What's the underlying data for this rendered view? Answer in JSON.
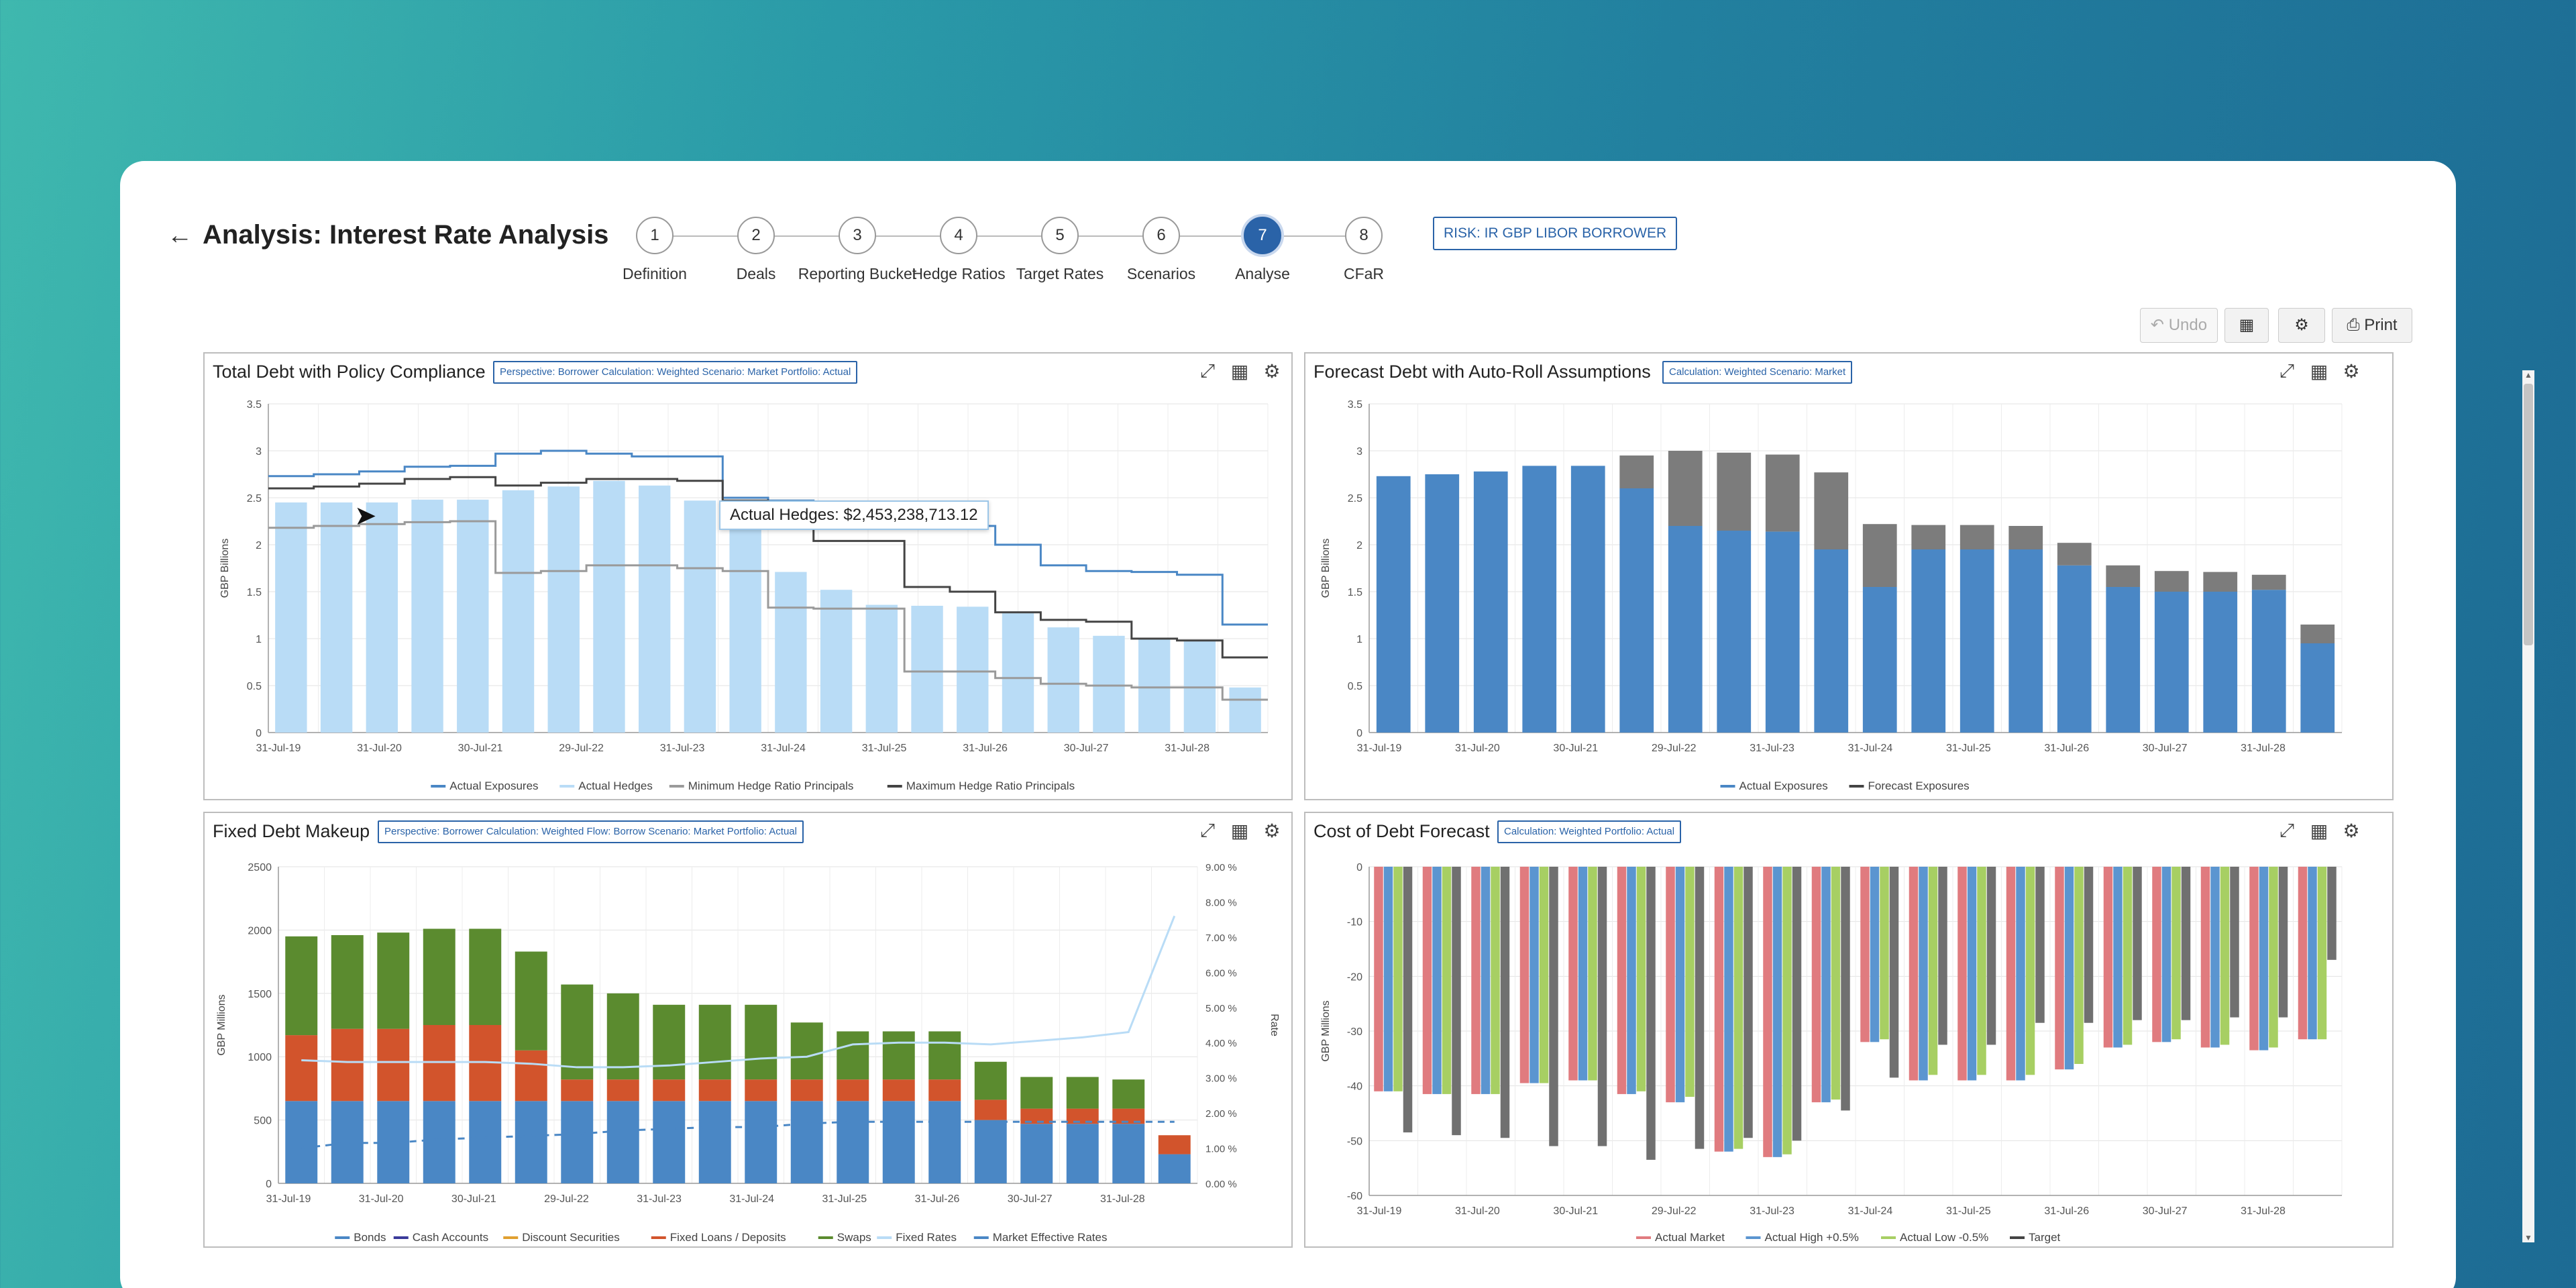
{
  "header": {
    "title": "Analysis: Interest Rate Analysis",
    "risk_label": "RISK: IR GBP LIBOR BORROWER",
    "steps": [
      {
        "num": "1",
        "label": "Definition"
      },
      {
        "num": "2",
        "label": "Deals"
      },
      {
        "num": "3",
        "label": "Reporting Bucket"
      },
      {
        "num": "4",
        "label": "Hedge Ratios"
      },
      {
        "num": "5",
        "label": "Target Rates"
      },
      {
        "num": "6",
        "label": "Scenarios"
      },
      {
        "num": "7",
        "label": "Analyse"
      },
      {
        "num": "8",
        "label": "CFaR"
      }
    ],
    "active_step": 7
  },
  "toolbar": {
    "undo_label": "Undo",
    "print_label": "Print"
  },
  "colors": {
    "accent": "#2a63a8",
    "exposures": "#4a87c5",
    "hedges": "#b9dcf6",
    "forecast_gray": "#7c7c7c",
    "bonds": "#4a87c5",
    "fixed_loans": "#d2542c",
    "swaps": "#5b8b2f",
    "red": "#e07b7f",
    "blue": "#5b95d0",
    "green": "#a7cf63",
    "gray": "#707070"
  },
  "tooltip": "Actual Hedges: $2,453,238,713.12",
  "panels": {
    "p1": {
      "title": "Total Debt with Policy Compliance",
      "tag": "Perspective: Borrower Calculation: Weighted Scenario: Market Portfolio: Actual"
    },
    "p2": {
      "title": "Forecast Debt with Auto-Roll Assumptions",
      "tag": "Calculation: Weighted Scenario: Market"
    },
    "p3": {
      "title": "Fixed Debt Makeup",
      "tag": "Perspective: Borrower Calculation: Weighted Flow: Borrow Scenario: Market Portfolio: Actual"
    },
    "p4": {
      "title": "Cost of Debt Forecast",
      "tag": "Calculation: Weighted Portfolio: Actual"
    }
  },
  "chart_data": [
    {
      "type": "bar",
      "title": "Total Debt with Policy Compliance",
      "ylabel": "GBP Billions",
      "ylim": [
        0,
        3.5
      ],
      "yticks": [
        "0",
        "0.5",
        "1",
        "1.5",
        "2",
        "2.5",
        "3",
        "3.5"
      ],
      "xticks": [
        "31-Jul-19",
        "31-Jul-20",
        "30-Jul-21",
        "29-Jul-22",
        "31-Jul-23",
        "31-Jul-24",
        "31-Jul-25",
        "31-Jul-26",
        "30-Jul-27",
        "31-Jul-28"
      ],
      "bars": {
        "name": "Actual Hedges",
        "values": [
          2.45,
          2.45,
          2.45,
          2.48,
          2.48,
          2.58,
          2.62,
          2.68,
          2.63,
          2.47,
          2.45,
          1.71,
          1.52,
          1.36,
          1.35,
          1.34,
          1.27,
          1.12,
          1.03,
          1.0,
          0.98,
          0.48
        ]
      },
      "lines": [
        {
          "name": "Actual Exposures",
          "values": [
            2.73,
            2.75,
            2.78,
            2.83,
            2.84,
            2.97,
            3.0,
            2.97,
            2.94,
            2.94,
            2.5,
            2.47,
            2.22,
            2.22,
            2.22,
            2.2,
            2.0,
            1.78,
            1.72,
            1.71,
            1.68,
            1.15
          ]
        },
        {
          "name": "Minimum Hedge Ratio Principals",
          "values": [
            2.18,
            2.2,
            2.22,
            2.24,
            2.25,
            1.7,
            1.72,
            1.78,
            1.78,
            1.75,
            1.72,
            1.33,
            1.32,
            1.32,
            0.65,
            0.65,
            0.58,
            0.52,
            0.5,
            0.48,
            0.48,
            0.35
          ]
        },
        {
          "name": "Maximum Hedge Ratio Principals",
          "values": [
            2.6,
            2.62,
            2.65,
            2.7,
            2.72,
            2.63,
            2.66,
            2.7,
            2.7,
            2.68,
            2.47,
            2.45,
            2.04,
            2.04,
            1.55,
            1.5,
            1.28,
            1.2,
            1.18,
            1.0,
            0.98,
            0.8
          ]
        }
      ],
      "legend": [
        "Actual Exposures",
        "Actual Hedges",
        "Minimum Hedge Ratio Principals",
        "Maximum Hedge Ratio Principals"
      ]
    },
    {
      "type": "bar",
      "title": "Forecast Debt with Auto-Roll Assumptions",
      "ylabel": "GBP Billions",
      "ylim": [
        0,
        3.5
      ],
      "yticks": [
        "0",
        "0.5",
        "1",
        "1.5",
        "2",
        "2.5",
        "3",
        "3.5"
      ],
      "xticks": [
        "31-Jul-19",
        "31-Jul-20",
        "30-Jul-21",
        "29-Jul-22",
        "31-Jul-23",
        "31-Jul-24",
        "31-Jul-25",
        "31-Jul-26",
        "30-Jul-27",
        "31-Jul-28"
      ],
      "series": [
        {
          "name": "Actual Exposures",
          "values": [
            2.73,
            2.75,
            2.78,
            2.84,
            2.84,
            2.6,
            2.2,
            2.15,
            2.14,
            1.95,
            1.55,
            1.95,
            1.95,
            1.95,
            1.78,
            1.55,
            1.5,
            1.5,
            1.52,
            0.95
          ]
        },
        {
          "name": "Forecast Exposures",
          "values": [
            0,
            0,
            0,
            0,
            0,
            0.35,
            0.8,
            0.83,
            0.82,
            0.82,
            0.67,
            0.26,
            0.26,
            0.25,
            0.24,
            0.23,
            0.22,
            0.21,
            0.16,
            0.2
          ]
        }
      ],
      "legend": [
        "Actual Exposures",
        "Forecast Exposures"
      ]
    },
    {
      "type": "bar",
      "title": "Fixed Debt Makeup",
      "ylabel": "GBP Millions",
      "y2label": "Rate",
      "ylim": [
        0,
        2500
      ],
      "y2lim": [
        0,
        9
      ],
      "yticks": [
        "0",
        "500",
        "1000",
        "1500",
        "2000",
        "2500"
      ],
      "y2ticks": [
        "0.00 %",
        "1.00 %",
        "2.00 %",
        "3.00 %",
        "4.00 %",
        "5.00 %",
        "6.00 %",
        "7.00 %",
        "8.00 %",
        "9.00 %"
      ],
      "xticks": [
        "31-Jul-19",
        "31-Jul-20",
        "30-Jul-21",
        "29-Jul-22",
        "31-Jul-23",
        "31-Jul-24",
        "31-Jul-25",
        "31-Jul-26",
        "30-Jul-27",
        "31-Jul-28"
      ],
      "series": [
        {
          "name": "Bonds",
          "values": [
            650,
            650,
            650,
            650,
            650,
            650,
            650,
            650,
            650,
            650,
            650,
            650,
            650,
            650,
            650,
            500,
            470,
            470,
            470,
            230
          ]
        },
        {
          "name": "Fixed Loans / Deposits",
          "values": [
            520,
            570,
            570,
            600,
            600,
            400,
            170,
            170,
            170,
            170,
            170,
            170,
            170,
            170,
            170,
            160,
            120,
            120,
            120,
            150
          ]
        },
        {
          "name": "Swaps",
          "values": [
            780,
            740,
            760,
            760,
            760,
            780,
            750,
            680,
            590,
            590,
            590,
            450,
            380,
            380,
            380,
            300,
            250,
            250,
            230,
            0
          ]
        }
      ],
      "lines": [
        {
          "name": "Fixed Rates",
          "values": [
            3.5,
            3.45,
            3.45,
            3.45,
            3.45,
            3.4,
            3.3,
            3.3,
            3.35,
            3.45,
            3.55,
            3.6,
            3.95,
            4.0,
            4.0,
            3.95,
            4.05,
            4.15,
            4.3,
            7.6
          ]
        },
        {
          "name": "Market Effective Rates",
          "values": [
            1.0,
            1.15,
            1.15,
            1.25,
            1.3,
            1.35,
            1.4,
            1.5,
            1.55,
            1.6,
            1.6,
            1.7,
            1.75,
            1.75,
            1.75,
            1.75,
            1.75,
            1.75,
            1.75,
            1.75
          ]
        }
      ],
      "legend": [
        "Bonds",
        "Cash Accounts",
        "Discount Securities",
        "Fixed Loans / Deposits",
        "Swaps",
        "Fixed Rates",
        "Market Effective Rates"
      ]
    },
    {
      "type": "bar",
      "title": "Cost of Debt Forecast",
      "ylabel": "GBP Millions",
      "ylim": [
        -60,
        0
      ],
      "yticks": [
        "0",
        "-10",
        "-20",
        "-30",
        "-40",
        "-50",
        "-60"
      ],
      "xticks": [
        "31-Jul-19",
        "31-Jul-20",
        "30-Jul-21",
        "29-Jul-22",
        "31-Jul-23",
        "31-Jul-24",
        "31-Jul-25",
        "31-Jul-26",
        "30-Jul-27",
        "31-Jul-28"
      ],
      "series": [
        {
          "name": "Actual Market",
          "values": [
            -41,
            -41.5,
            -41.5,
            -39.5,
            -39,
            -41.5,
            -43,
            -52,
            -53,
            -43,
            -32,
            -39,
            -39,
            -39,
            -37,
            -33,
            -32,
            -33,
            -33.5,
            -31.5
          ]
        },
        {
          "name": "Actual High +0.5%",
          "values": [
            -41,
            -41.5,
            -41.5,
            -39.5,
            -39,
            -41.5,
            -43,
            -52,
            -53,
            -43,
            -32,
            -39,
            -39,
            -39,
            -37,
            -33,
            -32,
            -33,
            -33.5,
            -31.5
          ]
        },
        {
          "name": "Actual Low -0.5%",
          "values": [
            -41,
            -41.5,
            -41.5,
            -39.5,
            -39,
            -41,
            -42,
            -51.5,
            -52.5,
            -42.5,
            -31.5,
            -38,
            -38,
            -38,
            -36,
            -32.5,
            -31.5,
            -32.5,
            -33,
            -31.5
          ]
        },
        {
          "name": "Target",
          "values": [
            -48.5,
            -49,
            -49.5,
            -51,
            -51,
            -53.5,
            -51.5,
            -49.5,
            -50,
            -44.5,
            -38.5,
            -32.5,
            -32.5,
            -28.5,
            -28.5,
            -28,
            -28,
            -27.5,
            -27.5,
            -17
          ]
        }
      ],
      "legend": [
        "Actual Market",
        "Actual High +0.5%",
        "Actual Low -0.5%",
        "Target"
      ]
    }
  ]
}
